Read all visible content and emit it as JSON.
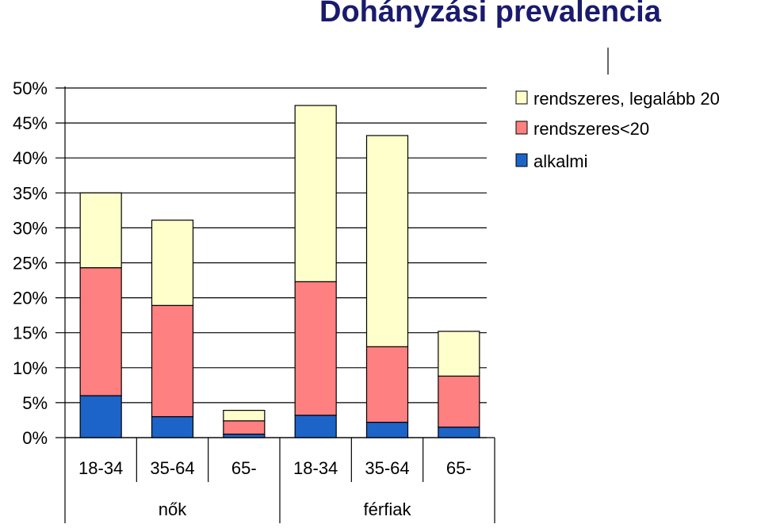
{
  "title": "Dohányzási prevalencia",
  "colors": {
    "regular_20plus": "#ffffcc",
    "regular_lt20": "#ff8080",
    "occasional": "#1c64c8",
    "grid": "#000000",
    "title": "#1a1a6e"
  },
  "chart_data": {
    "type": "bar",
    "stacked": true,
    "categories": [
      "18-34",
      "35-64",
      "65-",
      "18-34",
      "35-64",
      "65-"
    ],
    "groups": [
      {
        "label": "nők",
        "categories": [
          "18-34",
          "35-64",
          "65-"
        ]
      },
      {
        "label": "férfiak",
        "categories": [
          "18-34",
          "35-64",
          "65-"
        ]
      }
    ],
    "series": [
      {
        "name": "alkalmi",
        "color": "#1c64c8",
        "values": [
          6.0,
          3.0,
          0.5,
          3.2,
          2.2,
          1.5
        ]
      },
      {
        "name": "rendszeres<20",
        "color": "#ff8080",
        "values": [
          18.3,
          15.9,
          1.9,
          19.1,
          10.8,
          7.3
        ]
      },
      {
        "name": "rendszeres, legalább 20",
        "color": "#ffffcc",
        "values": [
          10.7,
          12.2,
          1.5,
          25.2,
          30.2,
          6.4
        ]
      }
    ],
    "ylim": [
      0,
      50
    ],
    "yticks": [
      "0%",
      "5%",
      "10%",
      "15%",
      "20%",
      "25%",
      "30%",
      "35%",
      "40%",
      "45%",
      "50%"
    ],
    "legend_position": "top-right",
    "grid": true
  },
  "legend": [
    {
      "label": "rendszeres, legalább 20",
      "color": "#ffffcc"
    },
    {
      "label": "rendszeres<20",
      "color": "#ff8080"
    },
    {
      "label": "alkalmi",
      "color": "#1c64c8"
    }
  ]
}
